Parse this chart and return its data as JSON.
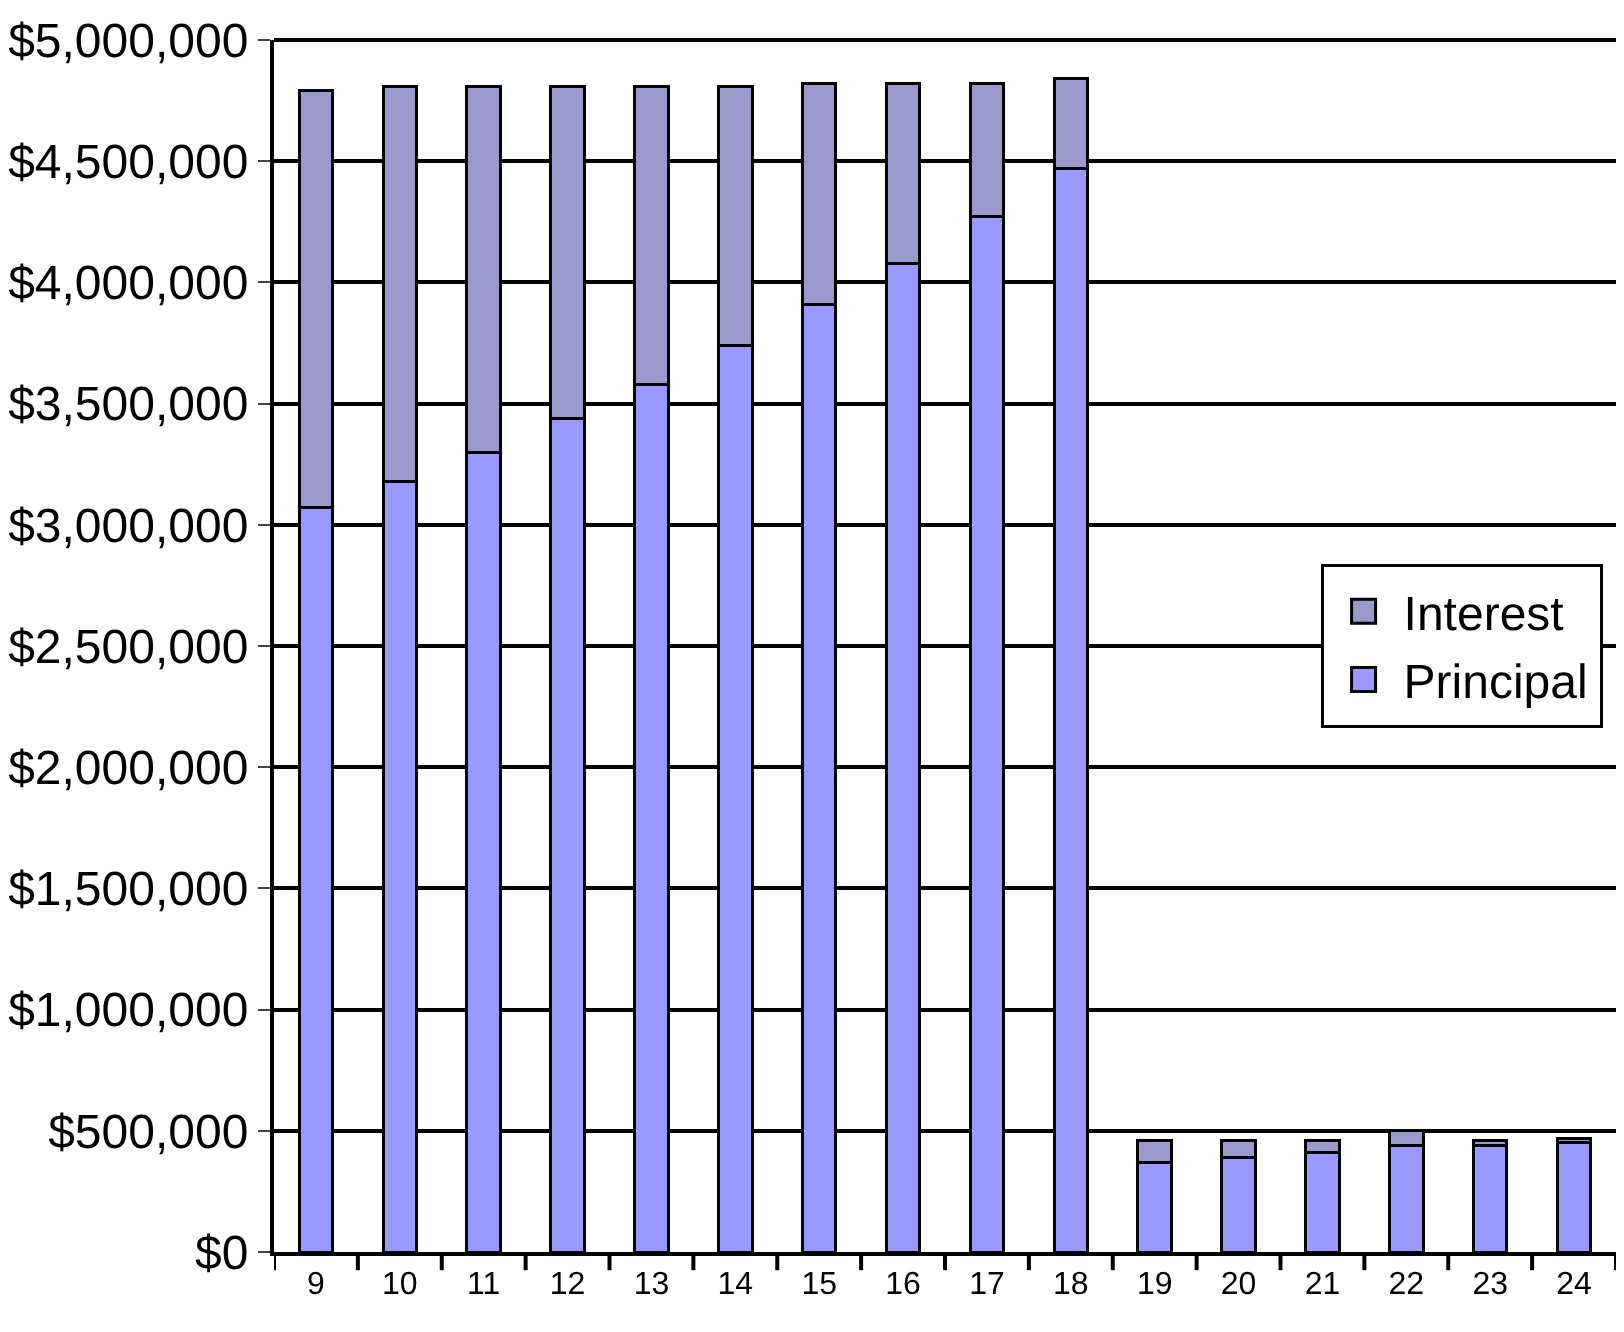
{
  "chart_data": {
    "type": "bar",
    "stacked": true,
    "categories": [
      "9",
      "10",
      "11",
      "12",
      "13",
      "14",
      "15",
      "16",
      "17",
      "18",
      "19",
      "20",
      "21",
      "22",
      "23",
      "24"
    ],
    "series": [
      {
        "name": "Principal",
        "color": "#9999ff",
        "values": [
          3070000,
          3180000,
          3300000,
          3440000,
          3580000,
          3740000,
          3910000,
          4080000,
          4270000,
          4470000,
          370000,
          390000,
          410000,
          440000,
          440000,
          450000
        ]
      },
      {
        "name": "Interest",
        "color": "#9999cc",
        "values": [
          1720000,
          1630000,
          1510000,
          1370000,
          1230000,
          1070000,
          910000,
          740000,
          550000,
          370000,
          90000,
          70000,
          50000,
          60000,
          20000,
          20000
        ]
      }
    ],
    "ylim": [
      0,
      5000000
    ],
    "yticks": [
      {
        "value": 0,
        "label": "$0"
      },
      {
        "value": 500000,
        "label": "$500,000"
      },
      {
        "value": 1000000,
        "label": "$1,000,000"
      },
      {
        "value": 1500000,
        "label": "$1,500,000"
      },
      {
        "value": 2000000,
        "label": "$2,000,000"
      },
      {
        "value": 2500000,
        "label": "$2,500,000"
      },
      {
        "value": 3000000,
        "label": "$3,000,000"
      },
      {
        "value": 3500000,
        "label": "$3,500,000"
      },
      {
        "value": 4000000,
        "label": "$4,000,000"
      },
      {
        "value": 4500000,
        "label": "$4,500,000"
      },
      {
        "value": 5000000,
        "label": "$5,000,000"
      }
    ],
    "grid": "y",
    "legend": "right"
  }
}
